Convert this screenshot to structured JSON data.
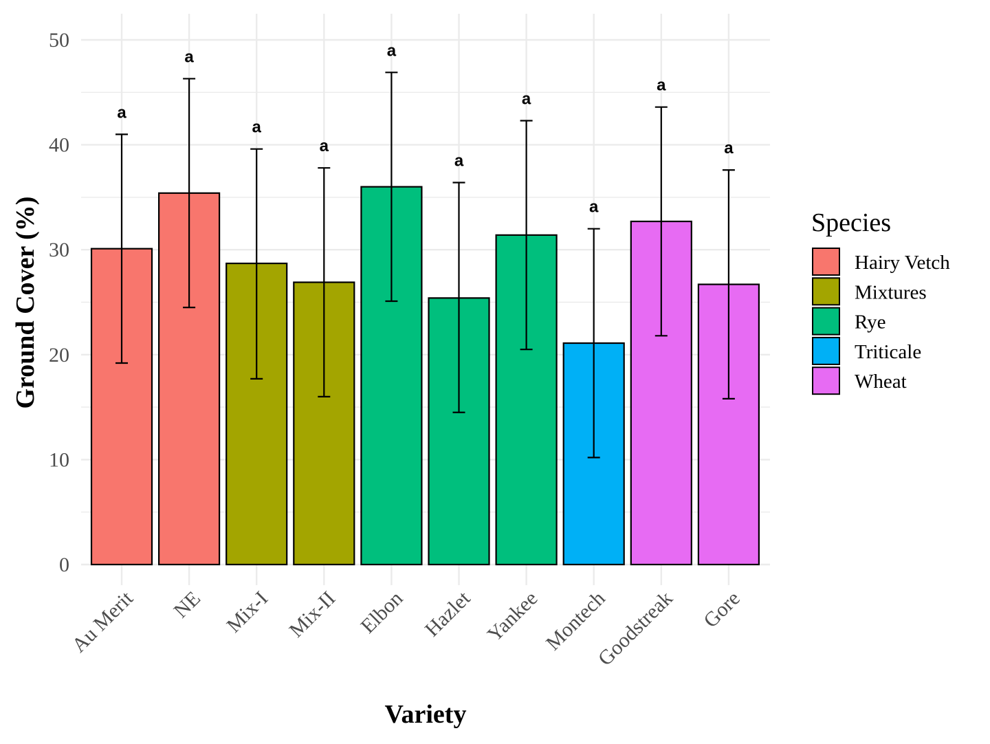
{
  "chart_data": {
    "type": "bar",
    "xlabel": "Variety",
    "ylabel": "Ground Cover (%)",
    "ylim": [
      0,
      52
    ],
    "yticks": [
      0,
      10,
      20,
      30,
      40,
      50
    ],
    "grid": true,
    "legend": {
      "title": "Species",
      "placement": "right",
      "entries": [
        {
          "name": "Hairy Vetch",
          "color": "#F8766D"
        },
        {
          "name": "Mixtures",
          "color": "#A3A500"
        },
        {
          "name": "Rye",
          "color": "#00BF7D"
        },
        {
          "name": "Triticale",
          "color": "#00B0F6"
        },
        {
          "name": "Wheat",
          "color": "#E76BF3"
        }
      ]
    },
    "categories": [
      "Au Merit",
      "NE",
      "Mix-I",
      "Mix-II",
      "Elbon",
      "Hazlet",
      "Yankee",
      "Montech",
      "Goodstreak",
      "Gore"
    ],
    "species": [
      "Hairy Vetch",
      "Hairy Vetch",
      "Mixtures",
      "Mixtures",
      "Rye",
      "Rye",
      "Rye",
      "Triticale",
      "Wheat",
      "Wheat"
    ],
    "values": [
      30.1,
      35.4,
      28.7,
      26.9,
      36.0,
      25.4,
      31.4,
      21.1,
      32.7,
      26.7
    ],
    "error_low": [
      19.2,
      24.5,
      17.7,
      16.0,
      25.1,
      14.5,
      20.5,
      10.2,
      21.8,
      15.8
    ],
    "error_high": [
      41.0,
      46.3,
      39.6,
      37.8,
      46.9,
      36.4,
      42.3,
      32.0,
      43.6,
      37.6
    ],
    "significance": [
      "a",
      "a",
      "a",
      "a",
      "a",
      "a",
      "a",
      "a",
      "a",
      "a"
    ]
  }
}
